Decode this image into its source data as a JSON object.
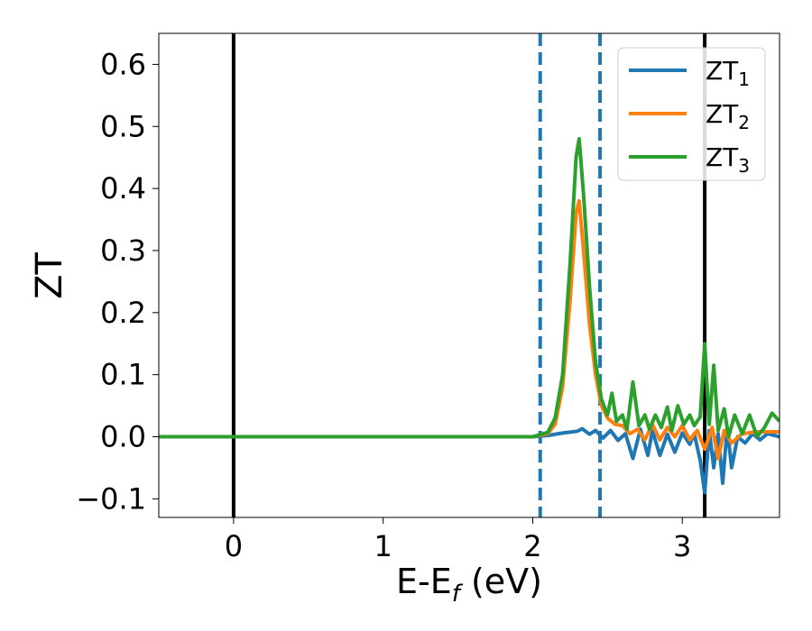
{
  "chart_data": {
    "type": "line",
    "title": "",
    "xlabel": "E-E",
    "xlabel_subscript": "f",
    "xlabel_unit": " (eV)",
    "ylabel": "ZT",
    "xlim": [
      -0.5,
      3.65
    ],
    "ylim": [
      -0.13,
      0.65
    ],
    "xticks": [
      0,
      1,
      2,
      3
    ],
    "yticks": [
      -0.1,
      0.0,
      0.1,
      0.2,
      0.3,
      0.4,
      0.5,
      0.6
    ],
    "ytick_labels": [
      "−0.1",
      "0.0",
      "0.1",
      "0.2",
      "0.3",
      "0.4",
      "0.5",
      "0.6"
    ],
    "grid": false,
    "legend_position": "top-right",
    "reference_lines": {
      "solid_black_x": [
        0,
        3.15
      ],
      "dashed_blue_x": [
        2.05,
        2.45
      ],
      "dashed_blue_color": "#1f77b4",
      "solid_color": "#000000"
    },
    "series": [
      {
        "name": "ZT",
        "subscript": "1",
        "color": "#1f77b4",
        "points": [
          [
            -0.5,
            0.0
          ],
          [
            2.0,
            0.0
          ],
          [
            2.1,
            0.002
          ],
          [
            2.2,
            0.006
          ],
          [
            2.3,
            0.009
          ],
          [
            2.33,
            0.013
          ],
          [
            2.38,
            0.004
          ],
          [
            2.42,
            0.01
          ],
          [
            2.47,
            -0.002
          ],
          [
            2.52,
            0.01
          ],
          [
            2.57,
            -0.006
          ],
          [
            2.62,
            0.005
          ],
          [
            2.67,
            -0.035
          ],
          [
            2.72,
            0.012
          ],
          [
            2.77,
            -0.03
          ],
          [
            2.8,
            0.01
          ],
          [
            2.85,
            -0.03
          ],
          [
            2.9,
            0.004
          ],
          [
            2.95,
            -0.025
          ],
          [
            3.0,
            0.006
          ],
          [
            3.05,
            -0.012
          ],
          [
            3.08,
            0.005
          ],
          [
            3.12,
            -0.038
          ],
          [
            3.15,
            -0.09
          ],
          [
            3.18,
            0.01
          ],
          [
            3.21,
            -0.05
          ],
          [
            3.24,
            0.005
          ],
          [
            3.27,
            -0.075
          ],
          [
            3.3,
            0.015
          ],
          [
            3.33,
            -0.05
          ],
          [
            3.37,
            0.0
          ],
          [
            3.42,
            -0.01
          ],
          [
            3.47,
            0.005
          ],
          [
            3.52,
            -0.005
          ],
          [
            3.57,
            0.005
          ],
          [
            3.65,
            0.0
          ]
        ]
      },
      {
        "name": "ZT",
        "subscript": "2",
        "color": "#ff7f0e",
        "points": [
          [
            -0.5,
            0.0
          ],
          [
            2.0,
            0.0
          ],
          [
            2.1,
            0.005
          ],
          [
            2.15,
            0.02
          ],
          [
            2.2,
            0.08
          ],
          [
            2.25,
            0.22
          ],
          [
            2.29,
            0.36
          ],
          [
            2.31,
            0.38
          ],
          [
            2.34,
            0.3
          ],
          [
            2.38,
            0.18
          ],
          [
            2.42,
            0.1
          ],
          [
            2.46,
            0.05
          ],
          [
            2.5,
            0.03
          ],
          [
            2.55,
            0.02
          ],
          [
            2.6,
            0.018
          ],
          [
            2.65,
            0.005
          ],
          [
            2.7,
            0.012
          ],
          [
            2.75,
            -0.005
          ],
          [
            2.8,
            0.02
          ],
          [
            2.85,
            -0.005
          ],
          [
            2.9,
            0.015
          ],
          [
            2.95,
            0.0
          ],
          [
            3.0,
            0.018
          ],
          [
            3.05,
            -0.005
          ],
          [
            3.1,
            0.01
          ],
          [
            3.15,
            -0.02
          ],
          [
            3.2,
            0.015
          ],
          [
            3.24,
            -0.035
          ],
          [
            3.28,
            0.01
          ],
          [
            3.33,
            -0.01
          ],
          [
            3.4,
            0.005
          ],
          [
            3.5,
            0.008
          ],
          [
            3.65,
            0.008
          ]
        ]
      },
      {
        "name": "ZT",
        "subscript": "3",
        "color": "#2ca02c",
        "points": [
          [
            -0.5,
            0.0
          ],
          [
            2.0,
            0.0
          ],
          [
            2.1,
            0.007
          ],
          [
            2.15,
            0.03
          ],
          [
            2.2,
            0.1
          ],
          [
            2.25,
            0.28
          ],
          [
            2.29,
            0.45
          ],
          [
            2.31,
            0.48
          ],
          [
            2.34,
            0.39
          ],
          [
            2.38,
            0.24
          ],
          [
            2.42,
            0.12
          ],
          [
            2.46,
            0.06
          ],
          [
            2.5,
            0.035
          ],
          [
            2.53,
            0.07
          ],
          [
            2.56,
            0.025
          ],
          [
            2.6,
            0.035
          ],
          [
            2.63,
            0.012
          ],
          [
            2.67,
            0.088
          ],
          [
            2.71,
            0.018
          ],
          [
            2.75,
            0.035
          ],
          [
            2.78,
            0.012
          ],
          [
            2.82,
            0.035
          ],
          [
            2.86,
            0.015
          ],
          [
            2.9,
            0.048
          ],
          [
            2.93,
            0.01
          ],
          [
            2.97,
            0.05
          ],
          [
            3.01,
            0.02
          ],
          [
            3.05,
            0.035
          ],
          [
            3.08,
            0.018
          ],
          [
            3.12,
            0.032
          ],
          [
            3.15,
            0.15
          ],
          [
            3.18,
            0.02
          ],
          [
            3.21,
            0.115
          ],
          [
            3.24,
            0.01
          ],
          [
            3.28,
            0.045
          ],
          [
            3.31,
            0.0
          ],
          [
            3.35,
            0.035
          ],
          [
            3.4,
            0.005
          ],
          [
            3.45,
            0.035
          ],
          [
            3.5,
            0.0
          ],
          [
            3.55,
            0.015
          ],
          [
            3.6,
            0.038
          ],
          [
            3.65,
            0.025
          ]
        ]
      }
    ]
  }
}
